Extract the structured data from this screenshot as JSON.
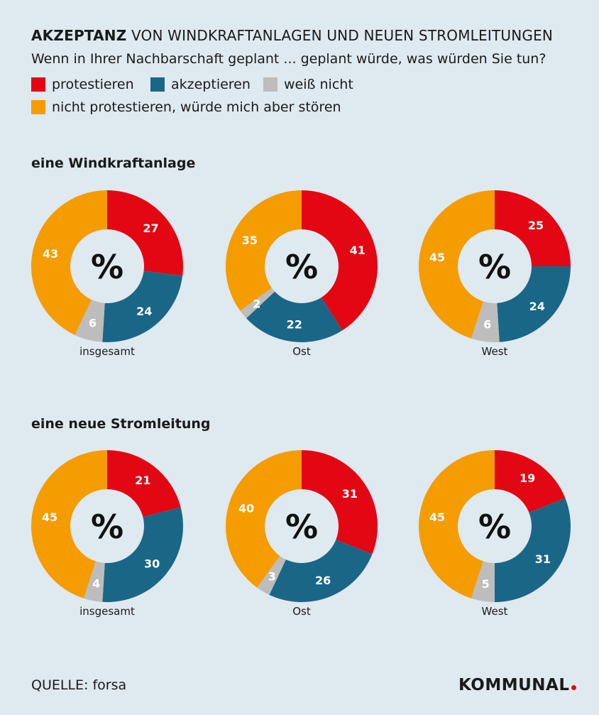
{
  "header": {
    "title_bold": "AKZEPTANZ",
    "title_rest": " VON WINDKRAFTANLAGEN UND NEUEN STROMLEITUNGEN",
    "subtitle": "Wenn in Ihrer Nachbarschaft geplant ... geplant würde, was würden Sie tun?"
  },
  "legend": [
    {
      "label": "protestieren",
      "color": "#e30613"
    },
    {
      "label": "akzeptieren",
      "color": "#1a6687"
    },
    {
      "label": "weiß nicht",
      "color": "#bdbdbd"
    },
    {
      "label": "nicht protestieren, würde mich aber stören",
      "color": "#f59c00"
    }
  ],
  "center_symbol": "%",
  "footer": {
    "source": "QUELLE: forsa",
    "logo": "KOMMUNAL"
  },
  "chart_data": [
    {
      "type": "pie",
      "title": "eine Windkraftanlage",
      "categories": [
        "protestieren",
        "akzeptieren",
        "weiß nicht",
        "nicht protestieren, würde mich aber stören"
      ],
      "series": [
        {
          "name": "insgesamt",
          "values": [
            27,
            24,
            6,
            43
          ]
        },
        {
          "name": "Ost",
          "values": [
            41,
            22,
            2,
            35
          ]
        },
        {
          "name": "West",
          "values": [
            25,
            24,
            6,
            45
          ]
        }
      ]
    },
    {
      "type": "pie",
      "title": "eine neue Stromleitung",
      "categories": [
        "protestieren",
        "akzeptieren",
        "weiß nicht",
        "nicht protestieren, würde mich aber stören"
      ],
      "series": [
        {
          "name": "insgesamt",
          "values": [
            21,
            30,
            4,
            45
          ]
        },
        {
          "name": "Ost",
          "values": [
            31,
            26,
            3,
            40
          ]
        },
        {
          "name": "West",
          "values": [
            19,
            31,
            5,
            45
          ]
        }
      ]
    }
  ]
}
